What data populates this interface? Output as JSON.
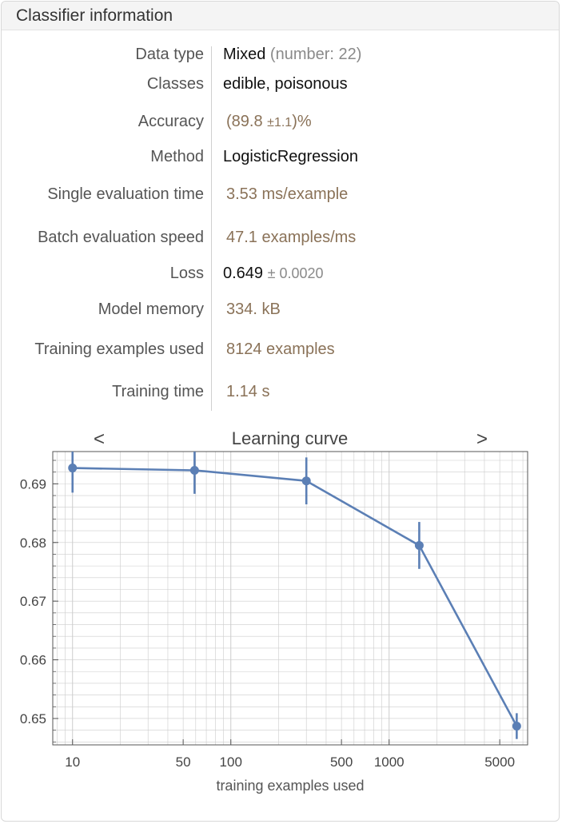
{
  "header": {
    "title": "Classifier information"
  },
  "info": {
    "data_type": {
      "label": "Data type",
      "value": "Mixed",
      "detail": "(number: 22)"
    },
    "classes": {
      "label": "Classes",
      "value": "edible, poisonous"
    },
    "accuracy": {
      "label": "Accuracy",
      "open": "(89.8",
      "pm": "±",
      "err": "1.1",
      "close": ")%"
    },
    "method": {
      "label": "Method",
      "value": "LogisticRegression"
    },
    "single_eval": {
      "label": "Single evaluation time",
      "value": "3.53 ms/example"
    },
    "batch_eval": {
      "label": "Batch evaluation speed",
      "value": "47.1 examples/ms"
    },
    "loss": {
      "label": "Loss",
      "value": "0.649",
      "err": "± 0.0020"
    },
    "memory": {
      "label": "Model memory",
      "value": "334. kB"
    },
    "examples": {
      "label": "Training examples used",
      "value": "8124 examples"
    },
    "time": {
      "label": "Training time",
      "value": "1.14 s"
    }
  },
  "nav": {
    "prev": "<",
    "next": ">"
  },
  "colors": {
    "series": "#5b7fb5",
    "label_value": "#8a7258",
    "grid": "#cccccc"
  },
  "chart_data": {
    "type": "line",
    "title": "Learning curve",
    "xlabel": "training examples used",
    "ylabel": "",
    "x_scale": "log",
    "xlim": [
      7.5,
      7500
    ],
    "ylim": [
      0.6455,
      0.6955
    ],
    "x_ticks": [
      10,
      50,
      100,
      500,
      1000,
      5000
    ],
    "x_tick_labels": [
      "10",
      "50",
      "100",
      "500",
      "1000",
      "5000"
    ],
    "y_ticks": [
      0.65,
      0.66,
      0.67,
      0.68,
      0.69
    ],
    "y_tick_labels": [
      "0.65",
      "0.66",
      "0.67",
      "0.68",
      "0.69"
    ],
    "grid": true,
    "series": [
      {
        "points": [
          {
            "x": 10,
            "y": 0.6927,
            "err": 0.0042
          },
          {
            "x": 59,
            "y": 0.6923,
            "err": 0.004
          },
          {
            "x": 300,
            "y": 0.6905,
            "err": 0.004
          },
          {
            "x": 1550,
            "y": 0.6795,
            "err": 0.004
          },
          {
            "x": 6400,
            "y": 0.6487,
            "err": 0.0022
          }
        ]
      }
    ]
  }
}
